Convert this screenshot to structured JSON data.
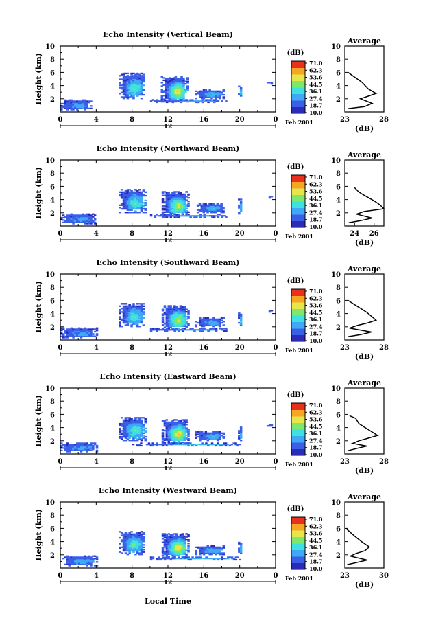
{
  "colorbar": {
    "unit_label": "(dB)",
    "ticks": [
      "71.0",
      "62.3",
      "53.6",
      "44.5",
      "36.1",
      "27.4",
      "18.7",
      "10.0"
    ],
    "colors": [
      "#2b2bb8",
      "#3b5ee8",
      "#3fa9f5",
      "#3fe0e0",
      "#7de86e",
      "#e6e64a",
      "#f5a623",
      "#e8301c"
    ]
  },
  "x_axis": {
    "ticks": [
      "0",
      "4",
      "8",
      "12",
      "16",
      "20",
      "0"
    ],
    "date_mark": "12",
    "date_label": "Feb 2001",
    "xlabel": "Local Time"
  },
  "y_axis": {
    "ticks": [
      "10",
      "8",
      "6",
      "4",
      "2"
    ],
    "ylabel": "Height (km)"
  },
  "profile": {
    "title": "Average",
    "xlabel": "(dB)"
  },
  "chart_data": [
    {
      "type": "heatmap",
      "title": "Echo Intensity (Vertical Beam)",
      "xlabel": "",
      "ylabel": "Height (km)",
      "xlim": [
        0,
        24
      ],
      "ylim": [
        0,
        10
      ],
      "echo_regions": [
        {
          "t0": 6.5,
          "t1": 9.3,
          "h0": 2.0,
          "h1": 5.8,
          "peak_db": 40
        },
        {
          "t0": 11.2,
          "t1": 14.2,
          "h0": 1.5,
          "h1": 5.4,
          "peak_db": 55
        },
        {
          "t0": 15.0,
          "t1": 18.2,
          "h0": 2.0,
          "h1": 3.4,
          "peak_db": 30
        },
        {
          "t0": 19.8,
          "t1": 20.2,
          "h0": 2.2,
          "h1": 4.0,
          "peak_db": 30
        },
        {
          "t0": 0.0,
          "t1": 3.5,
          "h0": 0.3,
          "h1": 1.8,
          "peak_db": 28
        },
        {
          "t0": 10.0,
          "t1": 18.5,
          "h0": 1.4,
          "h1": 1.8,
          "peak_db": 30
        },
        {
          "t0": 23.0,
          "t1": 23.5,
          "h0": 4.2,
          "h1": 4.5,
          "peak_db": 22
        }
      ],
      "profile": {
        "xlim": [
          23,
          28
        ],
        "xticks": [
          "23",
          "28"
        ],
        "x": [
          23.4,
          24.0,
          24.6,
          25.2,
          25.6,
          26.0,
          27.0,
          26.0,
          25.0,
          26.5,
          25.5,
          23.4
        ],
        "y": [
          6.0,
          5.5,
          5.0,
          4.5,
          4.0,
          3.5,
          2.8,
          2.4,
          2.0,
          1.3,
          0.8,
          0.5
        ]
      }
    },
    {
      "type": "heatmap",
      "title": "Echo Intensity (Northward Beam)",
      "xlabel": "",
      "ylabel": "Height (km)",
      "xlim": [
        0,
        24
      ],
      "ylim": [
        0,
        10
      ],
      "echo_regions": [
        {
          "t0": 6.5,
          "t1": 9.5,
          "h0": 2.0,
          "h1": 5.6,
          "peak_db": 40
        },
        {
          "t0": 11.3,
          "t1": 14.2,
          "h0": 1.5,
          "h1": 5.2,
          "peak_db": 50
        },
        {
          "t0": 15.2,
          "t1": 18.2,
          "h0": 2.0,
          "h1": 3.4,
          "peak_db": 30
        },
        {
          "t0": 19.8,
          "t1": 20.2,
          "h0": 1.8,
          "h1": 4.0,
          "peak_db": 30
        },
        {
          "t0": 0.0,
          "t1": 3.8,
          "h0": 0.3,
          "h1": 1.8,
          "peak_db": 28
        },
        {
          "t0": 10.0,
          "t1": 18.5,
          "h0": 1.3,
          "h1": 1.7,
          "peak_db": 30
        },
        {
          "t0": 23.0,
          "t1": 23.5,
          "h0": 4.2,
          "h1": 4.5,
          "peak_db": 22
        }
      ],
      "profile": {
        "xlim": [
          23,
          27
        ],
        "xticks": [
          "24",
          "26"
        ],
        "x": [
          24.0,
          24.4,
          24.8,
          25.4,
          26.0,
          26.6,
          27.0,
          25.0,
          24.2,
          25.8,
          24.6,
          23.4
        ],
        "y": [
          5.8,
          5.2,
          4.8,
          4.3,
          3.8,
          3.2,
          2.6,
          2.2,
          1.8,
          1.2,
          0.8,
          0.5
        ]
      }
    },
    {
      "type": "heatmap",
      "title": "Echo Intensity (Southward Beam)",
      "xlabel": "",
      "ylabel": "Height (km)",
      "xlim": [
        0,
        24
      ],
      "ylim": [
        0,
        10
      ],
      "echo_regions": [
        {
          "t0": 6.5,
          "t1": 9.3,
          "h0": 2.0,
          "h1": 5.6,
          "peak_db": 40
        },
        {
          "t0": 11.3,
          "t1": 14.2,
          "h0": 1.5,
          "h1": 5.2,
          "peak_db": 50
        },
        {
          "t0": 15.0,
          "t1": 18.2,
          "h0": 2.0,
          "h1": 3.4,
          "peak_db": 30
        },
        {
          "t0": 19.8,
          "t1": 20.2,
          "h0": 2.0,
          "h1": 4.0,
          "peak_db": 30
        },
        {
          "t0": 0.0,
          "t1": 4.0,
          "h0": 0.3,
          "h1": 1.8,
          "peak_db": 28
        },
        {
          "t0": 10.0,
          "t1": 18.5,
          "h0": 1.3,
          "h1": 1.7,
          "peak_db": 30
        },
        {
          "t0": 23.0,
          "t1": 23.5,
          "h0": 4.2,
          "h1": 4.5,
          "peak_db": 22
        }
      ],
      "profile": {
        "xlim": [
          23,
          28
        ],
        "xticks": [
          "23",
          "28"
        ],
        "x": [
          23.4,
          24.2,
          25.0,
          25.8,
          26.4,
          27.0,
          26.0,
          24.6,
          23.6,
          26.4,
          25.0,
          23.4
        ],
        "y": [
          6.0,
          5.4,
          4.8,
          4.2,
          3.6,
          3.0,
          2.6,
          2.2,
          1.8,
          1.2,
          0.8,
          0.5
        ]
      }
    },
    {
      "type": "heatmap",
      "title": "Echo Intensity (Eastward Beam)",
      "xlabel": "",
      "ylabel": "Height (km)",
      "xlim": [
        0,
        24
      ],
      "ylim": [
        0,
        10
      ],
      "echo_regions": [
        {
          "t0": 6.5,
          "t1": 9.5,
          "h0": 2.0,
          "h1": 5.6,
          "peak_db": 40
        },
        {
          "t0": 11.3,
          "t1": 14.2,
          "h0": 1.5,
          "h1": 5.2,
          "peak_db": 55
        },
        {
          "t0": 15.0,
          "t1": 18.2,
          "h0": 2.0,
          "h1": 3.4,
          "peak_db": 30
        },
        {
          "t0": 19.8,
          "t1": 20.2,
          "h0": 2.0,
          "h1": 4.0,
          "peak_db": 30
        },
        {
          "t0": 0.0,
          "t1": 4.0,
          "h0": 0.3,
          "h1": 1.6,
          "peak_db": 28
        },
        {
          "t0": 8.0,
          "t1": 20.0,
          "h0": 1.2,
          "h1": 1.6,
          "peak_db": 30
        },
        {
          "t0": 23.0,
          "t1": 23.5,
          "h0": 4.2,
          "h1": 4.5,
          "peak_db": 22
        }
      ],
      "profile": {
        "xlim": [
          23,
          28
        ],
        "xticks": [
          "23",
          "28"
        ],
        "x": [
          23.6,
          24.4,
          24.8,
          25.6,
          26.4,
          27.2,
          26.0,
          24.8,
          24.0,
          25.8,
          24.4,
          23.4
        ],
        "y": [
          5.8,
          5.4,
          4.6,
          4.0,
          3.4,
          2.8,
          2.4,
          2.0,
          1.6,
          1.2,
          0.8,
          0.5
        ]
      }
    },
    {
      "type": "heatmap",
      "title": "Echo Intensity (Westward Beam)",
      "xlabel": "Local Time",
      "ylabel": "Height (km)",
      "xlim": [
        0,
        24
      ],
      "ylim": [
        0,
        10
      ],
      "echo_regions": [
        {
          "t0": 6.5,
          "t1": 9.3,
          "h0": 2.0,
          "h1": 5.6,
          "peak_db": 40
        },
        {
          "t0": 11.3,
          "t1": 14.2,
          "h0": 1.5,
          "h1": 5.2,
          "peak_db": 55
        },
        {
          "t0": 15.0,
          "t1": 18.2,
          "h0": 2.0,
          "h1": 3.4,
          "peak_db": 30
        },
        {
          "t0": 19.8,
          "t1": 20.2,
          "h0": 2.0,
          "h1": 4.0,
          "peak_db": 30
        },
        {
          "t0": 0.0,
          "t1": 4.0,
          "h0": 0.3,
          "h1": 1.8,
          "peak_db": 28
        },
        {
          "t0": 10.0,
          "t1": 20.0,
          "h0": 1.2,
          "h1": 1.6,
          "peak_db": 30
        }
      ],
      "profile": {
        "xlim": [
          23,
          30
        ],
        "xticks": [
          "23",
          "30"
        ],
        "x": [
          23.2,
          24.0,
          24.8,
          26.0,
          27.4,
          26.6,
          25.0,
          24.0,
          27.0,
          25.0,
          23.4
        ],
        "y": [
          6.0,
          5.4,
          4.8,
          4.0,
          3.2,
          2.6,
          2.2,
          1.8,
          1.2,
          0.8,
          0.5
        ]
      }
    }
  ]
}
